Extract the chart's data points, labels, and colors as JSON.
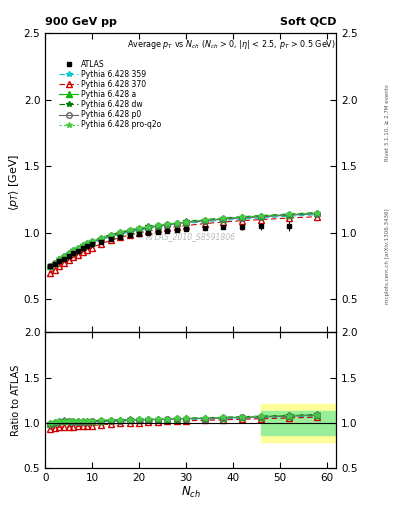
{
  "title_left": "900 GeV pp",
  "title_right": "Soft QCD",
  "watermark": "ATLAS_2010_S8591806",
  "right_label1": "Rivet 3.1.10, ≥ 2.7M events",
  "right_label2": "mcplots.cern.ch [arXiv:1306.3436]",
  "ylabel_main": "⟨p_{T}⟩ [GeV]",
  "ylabel_ratio": "Ratio to ATLAS",
  "xlabel": "N_{ch}",
  "ylim_main": [
    0.25,
    2.5
  ],
  "ylim_ratio": [
    0.5,
    2.0
  ],
  "xmin": 0,
  "xmax": 62,
  "yticks_main": [
    0.5,
    1.0,
    1.5,
    2.0,
    2.5
  ],
  "yticks_ratio": [
    0.5,
    1.0,
    1.5,
    2.0
  ],
  "series": {
    "ATLAS": {
      "x": [
        1,
        2,
        3,
        4,
        5,
        6,
        7,
        8,
        9,
        10,
        12,
        14,
        16,
        18,
        20,
        22,
        24,
        26,
        28,
        30,
        34,
        38,
        42,
        46,
        52
      ],
      "y": [
        0.752,
        0.765,
        0.784,
        0.804,
        0.826,
        0.847,
        0.866,
        0.882,
        0.898,
        0.912,
        0.934,
        0.953,
        0.968,
        0.981,
        0.992,
        1.001,
        1.009,
        1.016,
        1.022,
        1.027,
        1.037,
        1.043,
        1.046,
        1.048,
        1.051
      ],
      "yerr": [
        0.01,
        0.008,
        0.007,
        0.007,
        0.007,
        0.007,
        0.007,
        0.007,
        0.007,
        0.007,
        0.007,
        0.008,
        0.008,
        0.009,
        0.009,
        0.01,
        0.01,
        0.011,
        0.012,
        0.013,
        0.015,
        0.018,
        0.022,
        0.028,
        0.038
      ],
      "color": "#000000",
      "marker": "s",
      "markersize": 3.5,
      "linestyle": "none",
      "fillstyle": "full",
      "zorder": 10
    },
    "Pythia 6.428 359": {
      "x": [
        1,
        2,
        3,
        4,
        5,
        6,
        7,
        8,
        9,
        10,
        12,
        14,
        16,
        18,
        20,
        22,
        24,
        26,
        28,
        30,
        34,
        38,
        42,
        46,
        52,
        58
      ],
      "y": [
        0.745,
        0.765,
        0.79,
        0.812,
        0.832,
        0.852,
        0.871,
        0.889,
        0.906,
        0.921,
        0.948,
        0.97,
        0.989,
        1.005,
        1.019,
        1.031,
        1.042,
        1.052,
        1.061,
        1.069,
        1.083,
        1.094,
        1.103,
        1.111,
        1.124,
        1.135
      ],
      "color": "#00cccc",
      "marker": "*",
      "markersize": 4,
      "linestyle": "--",
      "fillstyle": "full",
      "zorder": 5
    },
    "Pythia 6.428 370": {
      "x": [
        1,
        2,
        3,
        4,
        5,
        6,
        7,
        8,
        9,
        10,
        12,
        14,
        16,
        18,
        20,
        22,
        24,
        26,
        28,
        30,
        34,
        38,
        42,
        46,
        52,
        58
      ],
      "y": [
        0.7,
        0.722,
        0.748,
        0.772,
        0.794,
        0.815,
        0.835,
        0.854,
        0.872,
        0.888,
        0.918,
        0.943,
        0.965,
        0.983,
        0.999,
        1.013,
        1.025,
        1.036,
        1.046,
        1.054,
        1.069,
        1.081,
        1.091,
        1.099,
        1.111,
        1.121
      ],
      "color": "#cc0000",
      "marker": "^",
      "markersize": 4,
      "linestyle": "--",
      "fillstyle": "none",
      "zorder": 5
    },
    "Pythia 6.428 a": {
      "x": [
        1,
        2,
        3,
        4,
        5,
        6,
        7,
        8,
        9,
        10,
        12,
        14,
        16,
        18,
        20,
        22,
        24,
        26,
        28,
        30,
        34,
        38,
        42,
        46,
        52,
        58
      ],
      "y": [
        0.748,
        0.772,
        0.8,
        0.824,
        0.846,
        0.866,
        0.885,
        0.903,
        0.919,
        0.934,
        0.96,
        0.982,
        1.0,
        1.016,
        1.03,
        1.042,
        1.053,
        1.063,
        1.072,
        1.08,
        1.094,
        1.106,
        1.116,
        1.124,
        1.136,
        1.147
      ],
      "color": "#00bb00",
      "marker": "^",
      "markersize": 4,
      "linestyle": "-",
      "fillstyle": "full",
      "zorder": 5
    },
    "Pythia 6.428 dw": {
      "x": [
        1,
        2,
        3,
        4,
        5,
        6,
        7,
        8,
        9,
        10,
        12,
        14,
        16,
        18,
        20,
        22,
        24,
        26,
        28,
        30,
        34,
        38,
        42,
        46,
        52,
        58
      ],
      "y": [
        0.752,
        0.776,
        0.804,
        0.828,
        0.85,
        0.87,
        0.889,
        0.907,
        0.923,
        0.938,
        0.964,
        0.986,
        1.005,
        1.021,
        1.035,
        1.047,
        1.058,
        1.068,
        1.077,
        1.085,
        1.099,
        1.111,
        1.121,
        1.129,
        1.141,
        1.152
      ],
      "color": "#007700",
      "marker": "*",
      "markersize": 4,
      "linestyle": "--",
      "fillstyle": "full",
      "zorder": 5
    },
    "Pythia 6.428 p0": {
      "x": [
        1,
        2,
        3,
        4,
        5,
        6,
        7,
        8,
        9,
        10,
        12,
        14,
        16,
        18,
        20,
        22,
        24,
        26,
        28,
        30,
        34,
        38,
        42,
        46,
        52,
        58
      ],
      "y": [
        0.748,
        0.77,
        0.797,
        0.82,
        0.842,
        0.862,
        0.881,
        0.898,
        0.914,
        0.929,
        0.955,
        0.977,
        0.996,
        1.012,
        1.026,
        1.038,
        1.049,
        1.059,
        1.068,
        1.076,
        1.09,
        1.102,
        1.112,
        1.12,
        1.132,
        1.143
      ],
      "color": "#666666",
      "marker": "o",
      "markersize": 4,
      "linestyle": "-",
      "fillstyle": "none",
      "zorder": 5
    },
    "Pythia 6.428 pro-q2o": {
      "x": [
        1,
        2,
        3,
        4,
        5,
        6,
        7,
        8,
        9,
        10,
        12,
        14,
        16,
        18,
        20,
        22,
        24,
        26,
        28,
        30,
        34,
        38,
        42,
        46,
        52,
        58
      ],
      "y": [
        0.75,
        0.774,
        0.802,
        0.826,
        0.848,
        0.868,
        0.887,
        0.905,
        0.921,
        0.936,
        0.962,
        0.984,
        1.003,
        1.019,
        1.033,
        1.045,
        1.056,
        1.066,
        1.075,
        1.083,
        1.097,
        1.109,
        1.119,
        1.127,
        1.139,
        1.15
      ],
      "color": "#44cc44",
      "marker": "*",
      "markersize": 4,
      "linestyle": ":",
      "fillstyle": "full",
      "zorder": 5
    }
  },
  "ratio_band_yellow_xmin": 46,
  "ratio_band_yellow_xmax": 62,
  "ratio_band_yellow_ymin": 0.79,
  "ratio_band_yellow_ymax": 1.21,
  "ratio_band_green_xmin": 46,
  "ratio_band_green_xmax": 62,
  "ratio_band_green_ymin": 0.87,
  "ratio_band_green_ymax": 1.13
}
